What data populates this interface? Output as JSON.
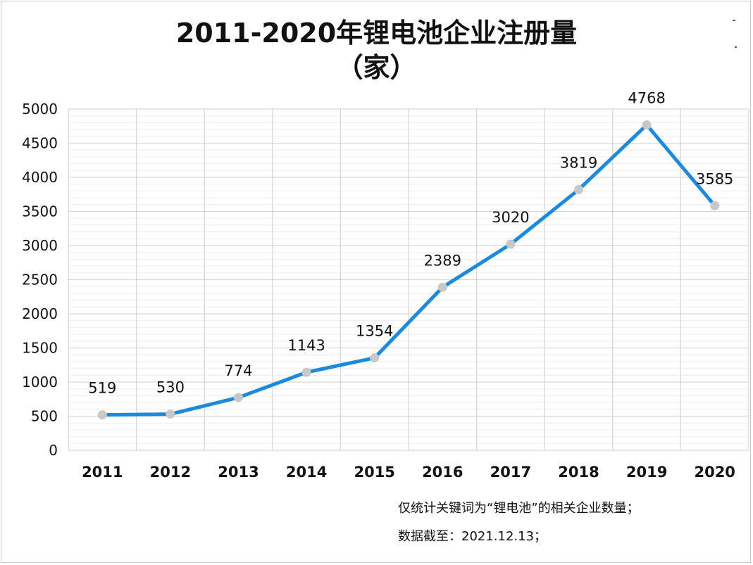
{
  "title_line1": "2011-2020年锂电池企业注册量",
  "title_line2": "（家）",
  "notes": {
    "line1": "仅统计关键词为“锂电池”的相关企业数量；",
    "line2": "数据截至：2021.12.13；"
  },
  "chart_data": {
    "type": "line",
    "title": "2011-2020年锂电池企业注册量（家）",
    "xlabel": "",
    "ylabel": "",
    "categories": [
      "2011",
      "2012",
      "2013",
      "2014",
      "2015",
      "2016",
      "2017",
      "2018",
      "2019",
      "2020"
    ],
    "values": [
      519,
      530,
      774,
      1143,
      1354,
      2389,
      3020,
      3819,
      4768,
      3585
    ],
    "ylim": [
      0,
      5000
    ],
    "yticks": [
      "0",
      "500",
      "1000",
      "1500",
      "2000",
      "2500",
      "3000",
      "3500",
      "4000",
      "4500",
      "5000"
    ],
    "data_labels": [
      "519",
      "530",
      "774",
      "1143",
      "1354",
      "2389",
      "3020",
      "3819",
      "4768",
      "3585"
    ],
    "grid": true,
    "legend": "none",
    "colors": {
      "line": "#1a8ae0",
      "marker": "#c8c8c8",
      "grid": "#d6d6d6"
    }
  }
}
